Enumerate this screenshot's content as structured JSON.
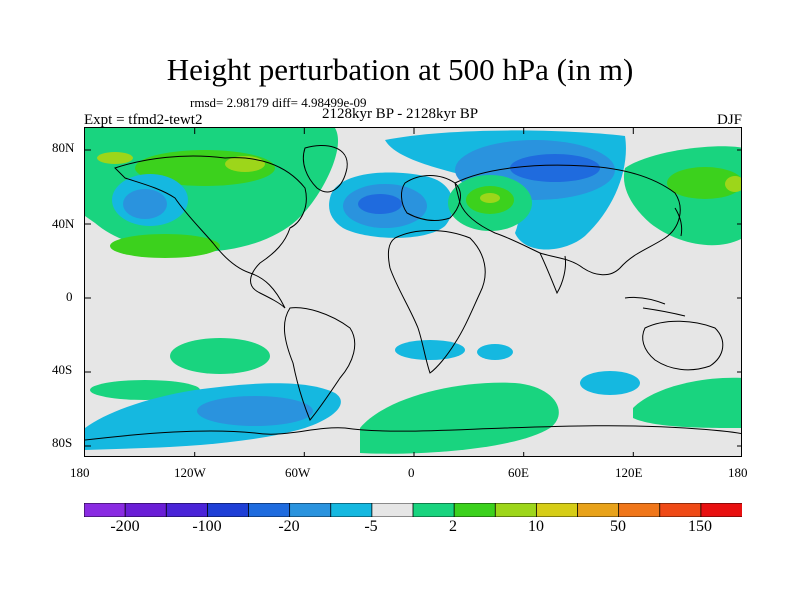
{
  "title": "Height perturbation at 500 hPa (in m)",
  "stats": "rmsd= 2.98179 diff= 4.98499e-09",
  "period": "2128kyr BP - 2128kyr BP",
  "expt_label": "Expt = tfmd2-tewt2",
  "season": "DJF",
  "lat_ticks": [
    "80N",
    "40N",
    "0",
    "40S",
    "80S"
  ],
  "lon_ticks": [
    "180",
    "120W",
    "60W",
    "0",
    "60E",
    "120E",
    "180"
  ],
  "colorbar": {
    "colors": [
      "#8a2be2",
      "#6a1ed6",
      "#4a24d8",
      "#1f3fd6",
      "#1f6bde",
      "#2a93de",
      "#15b8e0",
      "#e6e6e6",
      "#19d47f",
      "#3cd11d",
      "#9dd61a",
      "#d6cd16",
      "#e8a21a",
      "#f0761a",
      "#ef4a16",
      "#e81010"
    ],
    "labels": [
      "-200",
      "-100",
      "-20",
      "-5",
      "2",
      "10",
      "50",
      "150"
    ]
  },
  "palette": {
    "missing_bg": "#e6e6e6",
    "coast": "#000000"
  }
}
